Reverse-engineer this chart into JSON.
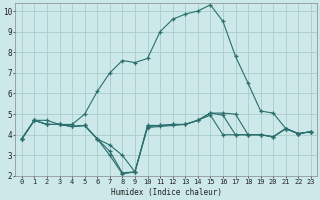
{
  "title": "",
  "xlabel": "Humidex (Indice chaleur)",
  "bg_color": "#cce8e8",
  "grid_color": "#aacccc",
  "line_color": "#2a6e6e",
  "xlim": [
    -0.5,
    23.5
  ],
  "ylim": [
    2,
    10.4
  ],
  "xticks": [
    0,
    1,
    2,
    3,
    4,
    5,
    6,
    7,
    8,
    9,
    10,
    11,
    12,
    13,
    14,
    15,
    16,
    17,
    18,
    19,
    20,
    21,
    22,
    23
  ],
  "yticks": [
    2,
    3,
    4,
    5,
    6,
    7,
    8,
    9,
    10
  ],
  "lines": [
    {
      "x": [
        0,
        1,
        2,
        3,
        4,
        5,
        6,
        7,
        8,
        9,
        10,
        11,
        12,
        13,
        14,
        15,
        16,
        17,
        18,
        19,
        20,
        21,
        22,
        23
      ],
      "y": [
        3.8,
        4.7,
        4.7,
        4.5,
        4.5,
        5.0,
        6.1,
        7.0,
        7.6,
        7.5,
        7.7,
        9.0,
        9.6,
        9.85,
        10.0,
        10.3,
        9.5,
        7.8,
        6.5,
        5.15,
        5.05,
        4.3,
        4.05,
        4.15
      ]
    },
    {
      "x": [
        0,
        1,
        2,
        3,
        4,
        5,
        6,
        7,
        8,
        9,
        10,
        11,
        12,
        13,
        14,
        15,
        16,
        17,
        18,
        19,
        20,
        21,
        22,
        23
      ],
      "y": [
        3.8,
        4.7,
        4.5,
        4.5,
        4.4,
        4.45,
        3.8,
        3.5,
        3.0,
        2.2,
        4.45,
        4.45,
        4.5,
        4.5,
        4.7,
        5.05,
        5.05,
        5.0,
        4.0,
        4.0,
        3.9,
        4.3,
        4.05,
        4.15
      ]
    },
    {
      "x": [
        0,
        1,
        2,
        3,
        4,
        5,
        6,
        7,
        8,
        9,
        10,
        11,
        12,
        13,
        14,
        15,
        16,
        17,
        18,
        19,
        20,
        21,
        22,
        23
      ],
      "y": [
        3.8,
        4.7,
        4.5,
        4.5,
        4.4,
        4.45,
        3.8,
        3.2,
        2.15,
        2.2,
        4.4,
        4.45,
        4.5,
        4.5,
        4.7,
        5.05,
        4.95,
        4.0,
        4.0,
        4.0,
        3.9,
        4.3,
        4.05,
        4.15
      ]
    },
    {
      "x": [
        0,
        1,
        2,
        3,
        4,
        5,
        6,
        7,
        8,
        9,
        10,
        11,
        12,
        13,
        14,
        15,
        16,
        17,
        18,
        19,
        20,
        21,
        22,
        23
      ],
      "y": [
        3.8,
        4.7,
        4.5,
        4.5,
        4.4,
        4.45,
        3.8,
        3.0,
        2.1,
        2.2,
        4.35,
        4.4,
        4.45,
        4.5,
        4.7,
        4.95,
        4.0,
        4.0,
        4.0,
        4.0,
        3.9,
        4.3,
        4.05,
        4.15
      ]
    }
  ]
}
